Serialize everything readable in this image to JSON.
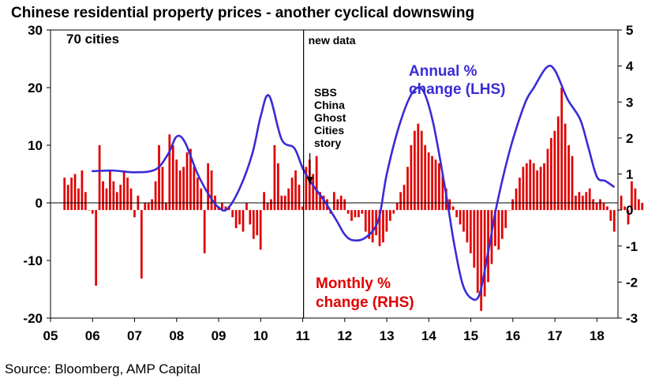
{
  "chart_data": {
    "type": "bar+line",
    "title": "Chinese residential property prices - another cyclical downswing",
    "source": "Source: Bloomberg, AMP Capital",
    "panel_label": "70 cities",
    "event_marker": {
      "label": "new data",
      "x": 2011.02
    },
    "annotation": {
      "lines": [
        "SBS",
        "China",
        "Ghost",
        "Cities",
        "story"
      ],
      "arrow_to_x": 2011.17
    },
    "x_ticks": [
      "05",
      "06",
      "07",
      "08",
      "09",
      "10",
      "11",
      "12",
      "13",
      "14",
      "15",
      "16",
      "17",
      "18"
    ],
    "xlim": [
      2005,
      2018.5
    ],
    "left_axis": {
      "ticks": [
        30,
        20,
        10,
        0,
        -10,
        -20
      ],
      "ylim": [
        -20,
        30
      ],
      "label": "Annual % change (LHS)"
    },
    "right_axis": {
      "ticks": [
        5,
        4,
        3,
        2,
        1,
        0,
        -1,
        -2,
        -3
      ],
      "ylim": [
        -3,
        5
      ],
      "label": "Monthly % change (RHS)"
    },
    "series": [
      {
        "name": "Annual % change (LHS)",
        "axis": "left",
        "kind": "line",
        "color": "#3a2bd6",
        "points": [
          [
            2006.0,
            5.5
          ],
          [
            2006.5,
            5.6
          ],
          [
            2007.0,
            5.3
          ],
          [
            2007.5,
            5.8
          ],
          [
            2007.8,
            8.5
          ],
          [
            2008.0,
            11.5
          ],
          [
            2008.2,
            10.5
          ],
          [
            2008.5,
            5.0
          ],
          [
            2008.8,
            1.0
          ],
          [
            2009.0,
            -0.8
          ],
          [
            2009.2,
            -1.1
          ],
          [
            2009.5,
            2.5
          ],
          [
            2009.8,
            8.5
          ],
          [
            2010.0,
            15.0
          ],
          [
            2010.2,
            18.6
          ],
          [
            2010.5,
            11.0
          ],
          [
            2010.8,
            9.5
          ],
          [
            2011.0,
            6.0
          ],
          [
            2011.2,
            3.5
          ],
          [
            2011.5,
            0.5
          ],
          [
            2011.8,
            -3.0
          ],
          [
            2012.0,
            -5.5
          ],
          [
            2012.2,
            -6.5
          ],
          [
            2012.5,
            -6.0
          ],
          [
            2012.8,
            -3.0
          ],
          [
            2013.0,
            5.0
          ],
          [
            2013.3,
            13.5
          ],
          [
            2013.6,
            19.0
          ],
          [
            2013.85,
            19.6
          ],
          [
            2014.1,
            14.0
          ],
          [
            2014.4,
            2.0
          ],
          [
            2014.6,
            -7.0
          ],
          [
            2014.8,
            -14.0
          ],
          [
            2015.0,
            -16.5
          ],
          [
            2015.2,
            -16.0
          ],
          [
            2015.4,
            -9.0
          ],
          [
            2015.6,
            -1.0
          ],
          [
            2015.8,
            5.5
          ],
          [
            2016.0,
            11.0
          ],
          [
            2016.3,
            17.5
          ],
          [
            2016.5,
            20.0
          ],
          [
            2016.8,
            23.5
          ],
          [
            2017.0,
            23.0
          ],
          [
            2017.3,
            18.0
          ],
          [
            2017.6,
            14.5
          ],
          [
            2017.8,
            9.5
          ],
          [
            2018.0,
            4.5
          ],
          [
            2018.2,
            3.8
          ],
          [
            2018.4,
            2.8
          ]
        ]
      },
      {
        "name": "Monthly % change (RHS)",
        "axis": "right",
        "kind": "bar",
        "color": "#e00000",
        "x_start": 2005.333,
        "x_step": 0.0833,
        "values": [
          0.9,
          0.7,
          0.9,
          1.0,
          0.6,
          1.1,
          0.5,
          0.0,
          -0.1,
          -2.1,
          1.8,
          0.8,
          0.6,
          1.1,
          0.8,
          0.5,
          0.7,
          1.1,
          0.9,
          0.6,
          -0.2,
          0.4,
          -1.9,
          0.2,
          0.2,
          0.3,
          0.8,
          1.8,
          1.2,
          0.2,
          2.1,
          1.8,
          1.4,
          1.1,
          1.2,
          1.6,
          1.7,
          1.2,
          0.9,
          0.6,
          -1.2,
          1.3,
          1.1,
          0.4,
          0.1,
          0.2,
          0.1,
          0.1,
          -0.2,
          -0.5,
          -0.4,
          -0.6,
          0.2,
          -0.4,
          -0.8,
          -0.7,
          -1.1,
          0.5,
          0.2,
          0.3,
          1.8,
          1.3,
          0.4,
          0.4,
          0.6,
          0.9,
          1.1,
          0.7,
          0.1,
          1.2,
          1.4,
          1.0,
          1.5,
          0.5,
          0.4,
          0.3,
          -0.1,
          0.5,
          0.3,
          0.4,
          0.3,
          -0.1,
          -0.3,
          -0.2,
          -0.2,
          -0.1,
          -0.6,
          -0.8,
          -0.9,
          -0.7,
          -1.0,
          -0.9,
          -0.6,
          -0.3,
          -0.1,
          0.2,
          0.5,
          0.7,
          1.2,
          1.8,
          2.2,
          2.4,
          2.2,
          1.8,
          1.6,
          1.5,
          1.4,
          1.3,
          1.0,
          0.6,
          0.3,
          0.1,
          -0.2,
          -0.4,
          -0.6,
          -0.9,
          -1.2,
          -1.6,
          -2.3,
          -2.8,
          -2.4,
          -2.0,
          -1.5,
          -1.0,
          -1.1,
          -0.8,
          -0.5,
          0.0,
          0.3,
          0.6,
          0.9,
          1.2,
          1.3,
          1.4,
          1.3,
          1.1,
          1.2,
          1.3,
          1.7,
          2.0,
          2.2,
          2.6,
          3.4,
          2.4,
          1.8,
          1.5,
          0.4,
          0.5,
          0.4,
          0.5,
          0.6,
          0.3,
          0.2,
          0.3,
          0.2,
          0.1,
          -0.3,
          -0.6,
          0.0,
          0.4,
          0.1,
          -0.4,
          0.8,
          0.6,
          0.3,
          0.2
        ]
      }
    ]
  }
}
